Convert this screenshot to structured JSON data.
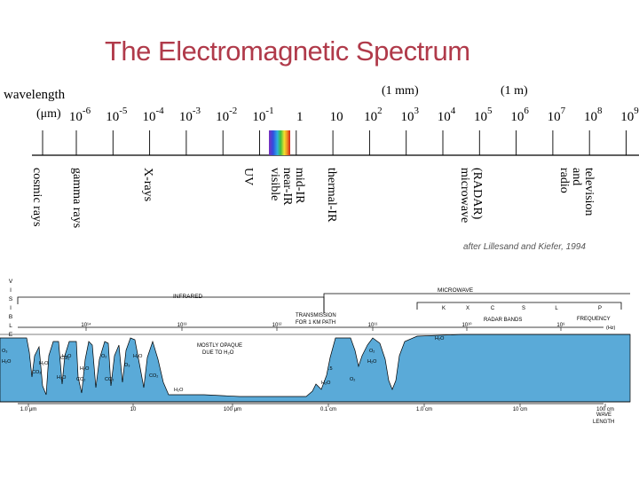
{
  "title": "The Electromagnetic Spectrum",
  "scale": {
    "label_line1": "wavelength",
    "label_line2": "(μm)",
    "ticks": [
      {
        "base": "10",
        "exp": "-6"
      },
      {
        "base": "10",
        "exp": "-5"
      },
      {
        "base": "10",
        "exp": "-4"
      },
      {
        "base": "10",
        "exp": "-3"
      },
      {
        "base": "10",
        "exp": "-2"
      },
      {
        "base": "10",
        "exp": "-1"
      },
      {
        "base": "1",
        "exp": ""
      },
      {
        "base": "10",
        "exp": ""
      },
      {
        "base": "10",
        "exp": "2"
      },
      {
        "base": "10",
        "exp": "3"
      },
      {
        "base": "10",
        "exp": "4"
      },
      {
        "base": "10",
        "exp": "5"
      },
      {
        "base": "10",
        "exp": "6"
      },
      {
        "base": "10",
        "exp": "7"
      },
      {
        "base": "10",
        "exp": "8"
      },
      {
        "base": "10",
        "exp": "9"
      }
    ],
    "markers": [
      "(1 mm)",
      "(1 m)"
    ]
  },
  "regions": [
    {
      "lines": [
        "cosmic rays"
      ]
    },
    {
      "lines": [
        "gamma rays"
      ]
    },
    {
      "lines": [
        "X-rays"
      ]
    },
    {
      "lines": [
        "UV"
      ]
    },
    {
      "lines": [
        "visible",
        "near-IR",
        "mid-IR"
      ]
    },
    {
      "lines": [
        "thermal-IR"
      ]
    },
    {
      "lines": [
        "microwave",
        "(RADAR)"
      ]
    },
    {
      "lines": [
        "radio",
        "and",
        "television"
      ]
    }
  ],
  "credit": "after Lillesand and Kiefer, 1994",
  "transmission": {
    "visible_letters": [
      "V",
      "I",
      "S",
      "I",
      "B",
      "L",
      "E"
    ],
    "infrared": "INFRARED",
    "microwave": "MICROWAVE",
    "bands": [
      "K",
      "X",
      "C",
      "S",
      "L",
      "P"
    ],
    "radar_bands": "RADAR BANDS",
    "frequency": "FREQUENCY",
    "hz": "(Hz)",
    "freq_ticks": [
      "10¹⁴",
      "10¹³",
      "10¹²",
      "10¹¹",
      "10¹⁰",
      "10⁹"
    ],
    "transmission_label1": "TRANSMISSION",
    "transmission_label2": "FOR 1 KM PATH",
    "opaque1": "MOSTLY OPAQUE",
    "opaque2": "DUE TO H₂O",
    "molecules": [
      "O₃",
      "H₂O",
      "CO₂",
      "H₂O",
      "H₂O",
      "CO₂",
      "H₂O",
      "CO₂",
      "O₂",
      "CO₂",
      "H₂O",
      "O₃",
      "H₂O",
      "O₂",
      "H₂O",
      "H₂O",
      "O₂",
      "H₂O",
      "CO₂",
      "H₂O",
      ".5"
    ],
    "wl_ticks": [
      "1.0 μm",
      "10",
      "100 μm",
      "0.1 cm",
      "1.0 cm",
      "10 cm",
      "100 cm"
    ],
    "wave1": "WAVE",
    "wave2": "LENGTH"
  }
}
